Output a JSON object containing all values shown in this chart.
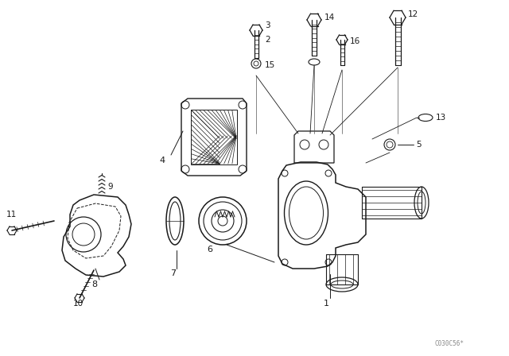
{
  "bg_color": "#ffffff",
  "line_color": "#1a1a1a",
  "watermark": "C030C56*",
  "fig_width": 6.4,
  "fig_height": 4.48,
  "dpi": 100
}
